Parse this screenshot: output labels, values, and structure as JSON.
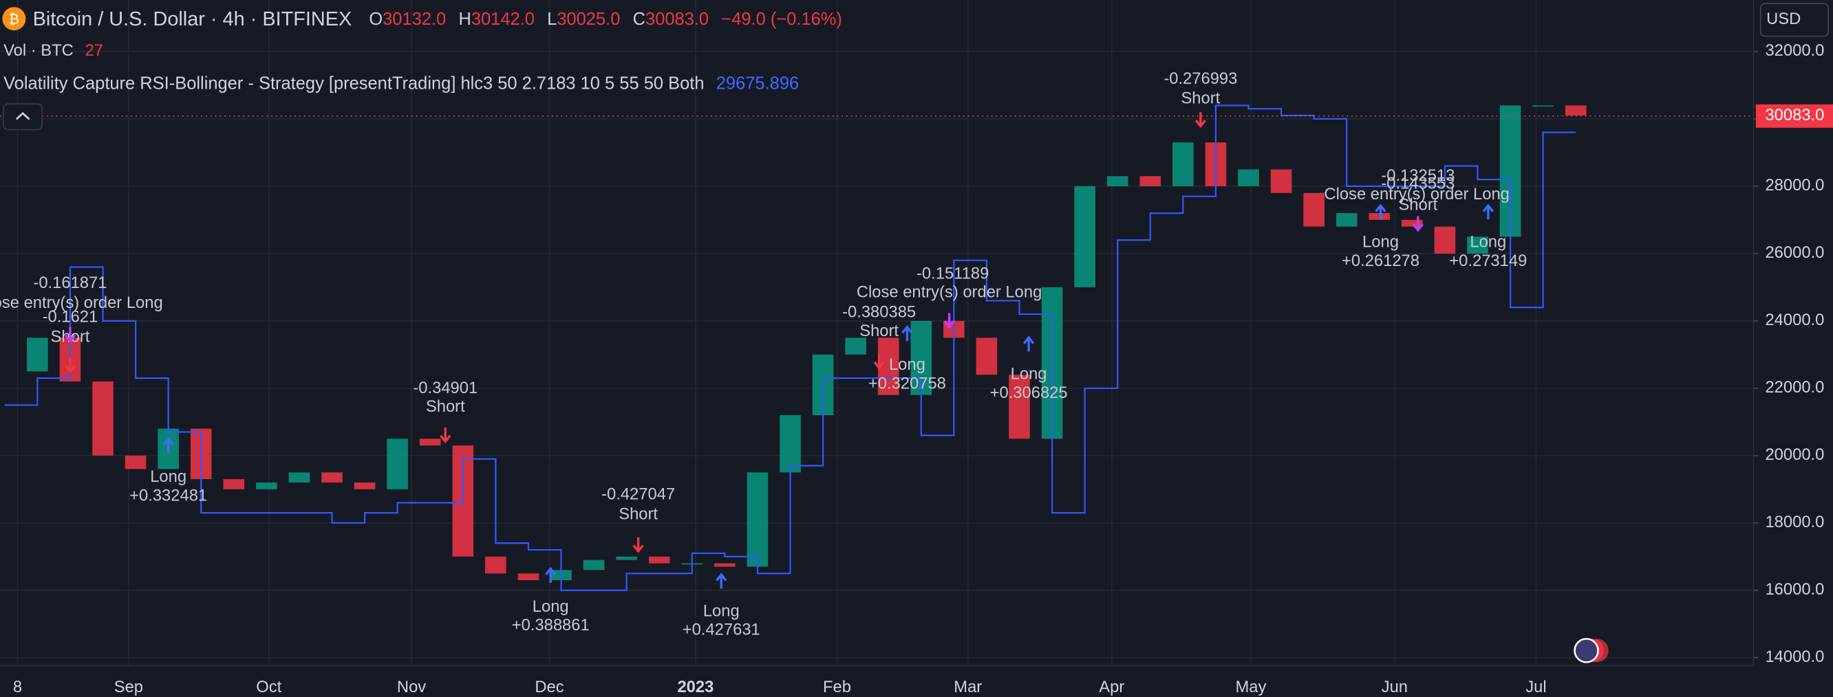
{
  "chart_data": {
    "type": "candlestick",
    "title": "Bitcoin / U.S. Dollar · 4h · BITFINEX",
    "ohlc_names": [
      "O",
      "H",
      "L",
      "C"
    ],
    "ohlc": [
      {
        "value": 30132,
        "label": "30132.0"
      },
      {
        "value": 30142,
        "label": "30142.0"
      },
      {
        "value": 30025,
        "label": "30025.0"
      },
      {
        "value": 30083,
        "label": "30083.0"
      }
    ],
    "change": "−49.0 (−0.16%)",
    "volume_label": "Vol · BTC",
    "volume_value": 27,
    "indicator_label": "Volatility Capture RSI-Bollinger - Strategy [presentTrading] hlc3 50 2.7183 10 5 55 50 Both",
    "indicator_value": 29675.896,
    "currency": "USD",
    "last_price": {
      "value": 30083,
      "label": "30083.0"
    },
    "xticks": [
      "8",
      "Sep",
      "Oct",
      "Nov",
      "Dec",
      "2023",
      "Feb",
      "Mar",
      "Apr",
      "May",
      "Jun",
      "Jul"
    ],
    "ylim": [
      13760,
      33530
    ],
    "yticks": [
      {
        "value": 14000,
        "label": "14000.0"
      },
      {
        "value": 16000,
        "label": "16000.0"
      },
      {
        "value": 18000,
        "label": "18000.0"
      },
      {
        "value": 20000,
        "label": "20000.0"
      },
      {
        "value": 22000,
        "label": "22000.0"
      },
      {
        "value": 24000,
        "label": "24000.0"
      },
      {
        "value": 26000,
        "label": "26000.0"
      },
      {
        "value": 28000,
        "label": "28000.0"
      },
      {
        "value": 30000,
        "label": "30000.0"
      },
      {
        "value": 32000,
        "label": "32000.0"
      }
    ],
    "grid": true,
    "up_color": "#089981",
    "down_color": "#f23645",
    "series": [
      {
        "name": "close",
        "values": [
          22500,
          23500,
          22200,
          20000,
          19600,
          20800,
          19300,
          19000,
          19200,
          19500,
          19200,
          19000,
          20500,
          20300,
          17000,
          16500,
          16300,
          16600,
          16900,
          17000,
          16800,
          16800,
          16700,
          19500,
          21200,
          23000,
          23500,
          21800,
          24000,
          23500,
          22400,
          20500,
          25000,
          28000,
          28300,
          28000,
          29300,
          28000,
          28500,
          27800,
          26800,
          27200,
          27000,
          26800,
          26000,
          26500,
          30400,
          30400,
          30100
        ]
      },
      {
        "name": "strategy",
        "color": "#3358ff",
        "values": [
          21500,
          22300,
          25600,
          24000,
          22300,
          20700,
          18300,
          18300,
          18300,
          18300,
          18000,
          18300,
          18600,
          18600,
          19900,
          17400,
          17200,
          16000,
          16000,
          16500,
          16500,
          17100,
          17000,
          16500,
          19700,
          22300,
          22300,
          22300,
          20600,
          25800,
          24600,
          24200,
          18300,
          22000,
          26400,
          27200,
          27700,
          30400,
          30300,
          30100,
          30000,
          28000,
          28000,
          28000,
          28600,
          28200,
          24400,
          29600,
          29600
        ]
      }
    ],
    "annotations": [
      "-0.161871",
      "Close entry(s) order Long",
      "-0.1621",
      "Short",
      "Long",
      "+0.332481",
      "-0.34901",
      "Short",
      "Long",
      "+0.388861",
      "-0.427047",
      "Short",
      "Long",
      "+0.427631",
      "-0.380385",
      "Short",
      "Long",
      "+0.320758",
      "-0.151189",
      "Close entry(s) order Long",
      "Long",
      "+0.306825",
      "-0.276993",
      "Short",
      "-0.132513",
      "-0.143553",
      "Close entry(s) order Long",
      "Short",
      "Long",
      "+0.261278",
      "Long",
      "+0.273149"
    ]
  }
}
